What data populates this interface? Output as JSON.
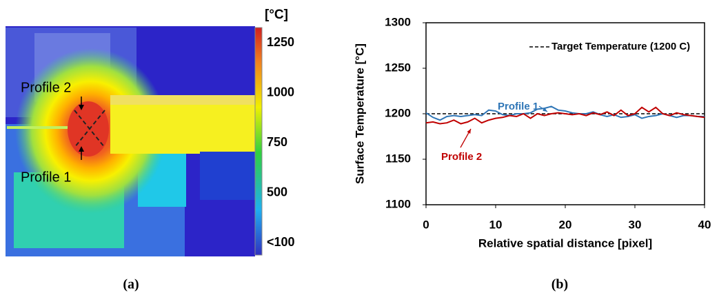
{
  "thermal_image": {
    "unit": "[°C]",
    "colorbar_labels": [
      "1250",
      "1000",
      "750",
      "500",
      "<100"
    ],
    "labels": [
      "Profile 2",
      "Profile 1"
    ],
    "caption": "(a)"
  },
  "chart_data": {
    "type": "line",
    "caption": "(b)",
    "x_label": "Relative spatial distance [pixel]",
    "y_label": "Surface Temperature [°C]",
    "x": [
      0,
      1,
      2,
      3,
      4,
      5,
      6,
      7,
      8,
      9,
      10,
      11,
      12,
      13,
      14,
      15,
      16,
      17,
      18,
      19,
      20,
      21,
      22,
      23,
      24,
      25,
      26,
      27,
      28,
      29,
      30,
      31,
      32,
      33,
      34,
      35,
      36,
      37,
      38,
      39,
      40
    ],
    "series": [
      {
        "name": "Profile 1",
        "color": "#2e75b6",
        "values": [
          1201,
          1196,
          1193,
          1197,
          1198,
          1197,
          1198,
          1199,
          1198,
          1204,
          1203,
          1199,
          1198,
          1200,
          1200,
          1201,
          1205,
          1206,
          1208,
          1204,
          1203,
          1201,
          1200,
          1200,
          1202,
          1199,
          1197,
          1199,
          1196,
          1197,
          1199,
          1195,
          1197,
          1198,
          1200,
          1198,
          1196,
          1198,
          1198,
          1197,
          1197
        ]
      },
      {
        "name": "Profile 2",
        "color": "#c00000",
        "values": [
          1190,
          1191,
          1189,
          1190,
          1193,
          1189,
          1191,
          1195,
          1190,
          1193,
          1195,
          1196,
          1198,
          1197,
          1200,
          1195,
          1200,
          1198,
          1200,
          1201,
          1200,
          1199,
          1200,
          1198,
          1201,
          1199,
          1202,
          1198,
          1204,
          1198,
          1200,
          1207,
          1202,
          1207,
          1200,
          1198,
          1201,
          1199,
          1198,
          1197,
          1196
        ]
      }
    ],
    "reference_line": {
      "name": "Target Temperature (1200 C)",
      "value": 1200,
      "color": "#000000",
      "style": "dashed"
    },
    "legend": "upper right",
    "xlim": [
      0,
      40
    ],
    "xticks": [
      0,
      10,
      20,
      30,
      40
    ],
    "ylim": [
      1100,
      1300
    ],
    "yticks": [
      1100,
      1150,
      1200,
      1250,
      1300
    ]
  }
}
